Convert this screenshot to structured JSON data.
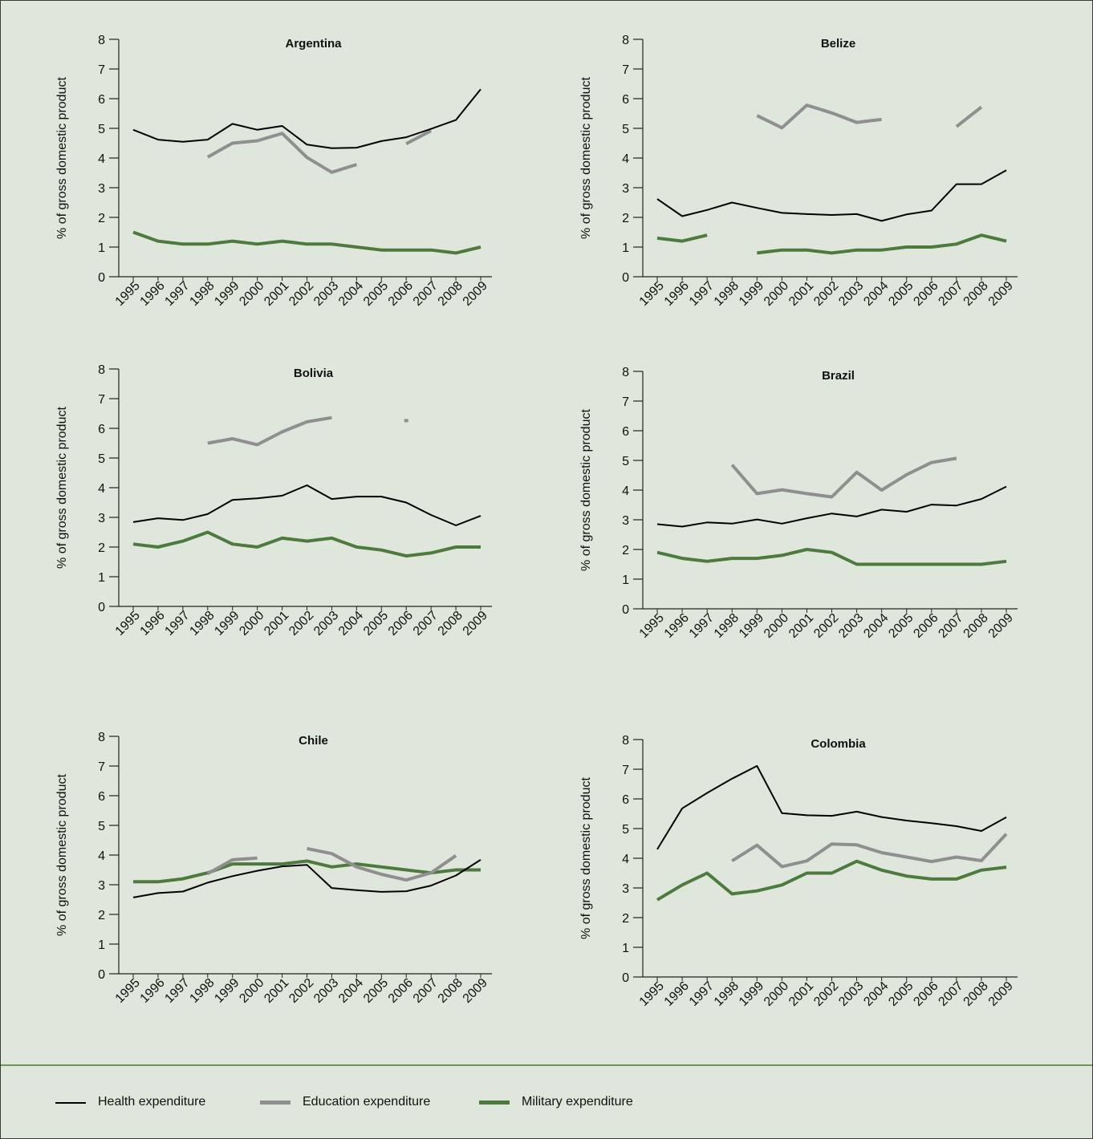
{
  "colors": {
    "background": "#dfe6dc",
    "health": "#000000",
    "education": "#8f8f8f",
    "military": "#4c7a3f",
    "legend_rule": "#6c9a52"
  },
  "legend": {
    "items": [
      {
        "series": "health",
        "label": "Health expenditure"
      },
      {
        "series": "education",
        "label": "Education expenditure"
      },
      {
        "series": "military",
        "label": "Military expenditure"
      }
    ]
  },
  "chart_data": [
    {
      "type": "line",
      "title": "Argentina",
      "ylabel": "% of gross domestic product",
      "ylim": [
        0,
        8
      ],
      "yticks": [
        0,
        1,
        2,
        3,
        4,
        5,
        6,
        7,
        8
      ],
      "x": [
        "1995",
        "1996",
        "1997",
        "1998",
        "1999",
        "2000",
        "2001",
        "2002",
        "2003",
        "2004",
        "2005",
        "2006",
        "2007",
        "2008",
        "2009"
      ],
      "series": [
        {
          "key": "health",
          "values": [
            4.95,
            4.62,
            4.55,
            4.62,
            5.15,
            4.95,
            5.08,
            4.45,
            4.33,
            4.35,
            4.57,
            4.7,
            4.98,
            5.28,
            6.32
          ]
        },
        {
          "key": "education",
          "values": [
            null,
            null,
            null,
            4.03,
            4.5,
            4.58,
            4.83,
            4.02,
            3.52,
            3.78,
            null,
            4.48,
            4.92,
            null,
            null
          ]
        },
        {
          "key": "military",
          "values": [
            1.5,
            1.2,
            1.1,
            1.1,
            1.2,
            1.1,
            1.2,
            1.1,
            1.1,
            1.0,
            0.9,
            0.9,
            0.9,
            0.8,
            1.0
          ]
        }
      ]
    },
    {
      "type": "line",
      "title": "Belize",
      "ylabel": "% of gross domestic product",
      "ylim": [
        0,
        8
      ],
      "yticks": [
        0,
        1,
        2,
        3,
        4,
        5,
        6,
        7,
        8
      ],
      "x": [
        "1995",
        "1996",
        "1997",
        "1998",
        "1999",
        "2000",
        "2001",
        "2002",
        "2003",
        "2004",
        "2005",
        "2006",
        "2007",
        "2008",
        "2009"
      ],
      "series": [
        {
          "key": "health",
          "values": [
            2.62,
            2.04,
            2.25,
            2.5,
            2.32,
            2.15,
            2.11,
            2.08,
            2.11,
            1.88,
            2.1,
            2.23,
            3.12,
            3.12,
            3.59
          ]
        },
        {
          "key": "education",
          "values": [
            null,
            null,
            null,
            null,
            5.43,
            5.02,
            5.78,
            5.52,
            5.2,
            5.3,
            null,
            null,
            5.06,
            5.72,
            null
          ]
        },
        {
          "key": "military",
          "values": [
            1.3,
            1.2,
            1.4,
            null,
            0.8,
            0.9,
            0.9,
            0.8,
            0.9,
            0.9,
            1.0,
            1.0,
            1.1,
            1.4,
            1.2
          ]
        }
      ]
    },
    {
      "type": "line",
      "title": "Bolivia",
      "ylabel": "% of gross domestic product",
      "ylim": [
        0,
        8
      ],
      "yticks": [
        0,
        1,
        2,
        3,
        4,
        5,
        6,
        7,
        8
      ],
      "x": [
        "1995",
        "1996",
        "1997",
        "1998",
        "1999",
        "2000",
        "2001",
        "2002",
        "2003",
        "2004",
        "2005",
        "2006",
        "2007",
        "2008",
        "2009"
      ],
      "series": [
        {
          "key": "health",
          "values": [
            2.84,
            2.97,
            2.91,
            3.11,
            3.59,
            3.64,
            3.73,
            4.08,
            3.62,
            3.7,
            3.7,
            3.5,
            3.08,
            2.73,
            3.05
          ]
        },
        {
          "key": "education",
          "values": [
            null,
            null,
            null,
            5.5,
            5.65,
            5.45,
            5.88,
            6.22,
            6.36,
            null,
            null,
            6.26,
            null,
            null,
            null
          ]
        },
        {
          "key": "military",
          "values": [
            2.1,
            2.0,
            2.2,
            2.5,
            2.1,
            2.0,
            2.3,
            2.2,
            2.3,
            2.0,
            1.9,
            1.7,
            1.8,
            2.0,
            2.0
          ]
        }
      ]
    },
    {
      "type": "line",
      "title": "Brazil",
      "ylabel": "% of gross domestic product",
      "ylim": [
        0,
        8
      ],
      "yticks": [
        0,
        1,
        2,
        3,
        4,
        5,
        6,
        7,
        8
      ],
      "x": [
        "1995",
        "1996",
        "1997",
        "1998",
        "1999",
        "2000",
        "2001",
        "2002",
        "2003",
        "2004",
        "2005",
        "2006",
        "2007",
        "2008",
        "2009"
      ],
      "series": [
        {
          "key": "health",
          "values": [
            2.85,
            2.77,
            2.91,
            2.87,
            3.01,
            2.87,
            3.05,
            3.21,
            3.11,
            3.34,
            3.27,
            3.51,
            3.48,
            3.7,
            4.12
          ]
        },
        {
          "key": "education",
          "values": [
            null,
            null,
            null,
            4.85,
            3.88,
            4.01,
            3.88,
            3.77,
            4.6,
            4.0,
            4.52,
            4.93,
            5.07,
            null,
            null
          ]
        },
        {
          "key": "military",
          "values": [
            1.9,
            1.7,
            1.6,
            1.7,
            1.7,
            1.8,
            2.0,
            1.9,
            1.5,
            1.5,
            1.5,
            1.5,
            1.5,
            1.5,
            1.6
          ]
        }
      ]
    },
    {
      "type": "line",
      "title": "Chile",
      "ylabel": "% of gross domestic product",
      "ylim": [
        0,
        8
      ],
      "yticks": [
        0,
        1,
        2,
        3,
        4,
        5,
        6,
        7,
        8
      ],
      "x": [
        "1995",
        "1996",
        "1997",
        "1998",
        "1999",
        "2000",
        "2001",
        "2002",
        "2003",
        "2004",
        "2005",
        "2006",
        "2007",
        "2008",
        "2009"
      ],
      "series": [
        {
          "key": "health",
          "values": [
            2.57,
            2.72,
            2.77,
            3.07,
            3.29,
            3.47,
            3.62,
            3.67,
            2.89,
            2.82,
            2.76,
            2.78,
            2.97,
            3.31,
            3.84
          ]
        },
        {
          "key": "education",
          "values": [
            null,
            null,
            null,
            3.37,
            3.84,
            3.9,
            null,
            4.22,
            4.05,
            3.6,
            3.35,
            3.16,
            3.4,
            3.98,
            null
          ]
        },
        {
          "key": "military",
          "values": [
            3.1,
            3.1,
            3.2,
            3.4,
            3.7,
            3.7,
            3.7,
            3.8,
            3.6,
            3.7,
            3.6,
            3.5,
            3.4,
            3.5,
            3.5
          ]
        }
      ]
    },
    {
      "type": "line",
      "title": "Colombia",
      "ylabel": "% of gross domestic product",
      "ylim": [
        0,
        8
      ],
      "yticks": [
        0,
        1,
        2,
        3,
        4,
        5,
        6,
        7,
        8
      ],
      "x": [
        "1995",
        "1996",
        "1997",
        "1998",
        "1999",
        "2000",
        "2001",
        "2002",
        "2003",
        "2004",
        "2005",
        "2006",
        "2007",
        "2008",
        "2009"
      ],
      "series": [
        {
          "key": "health",
          "values": [
            4.3,
            5.68,
            6.2,
            6.68,
            7.11,
            5.52,
            5.45,
            5.43,
            5.57,
            5.39,
            5.27,
            5.18,
            5.08,
            4.92,
            5.38
          ]
        },
        {
          "key": "education",
          "values": [
            null,
            null,
            null,
            3.91,
            4.44,
            3.72,
            3.91,
            4.48,
            4.45,
            4.19,
            4.04,
            3.89,
            4.04,
            3.92,
            4.82
          ]
        },
        {
          "key": "military",
          "values": [
            2.6,
            3.1,
            3.5,
            2.8,
            2.9,
            3.1,
            3.5,
            3.5,
            3.9,
            3.6,
            3.4,
            3.3,
            3.3,
            3.6,
            3.7
          ]
        }
      ]
    }
  ]
}
